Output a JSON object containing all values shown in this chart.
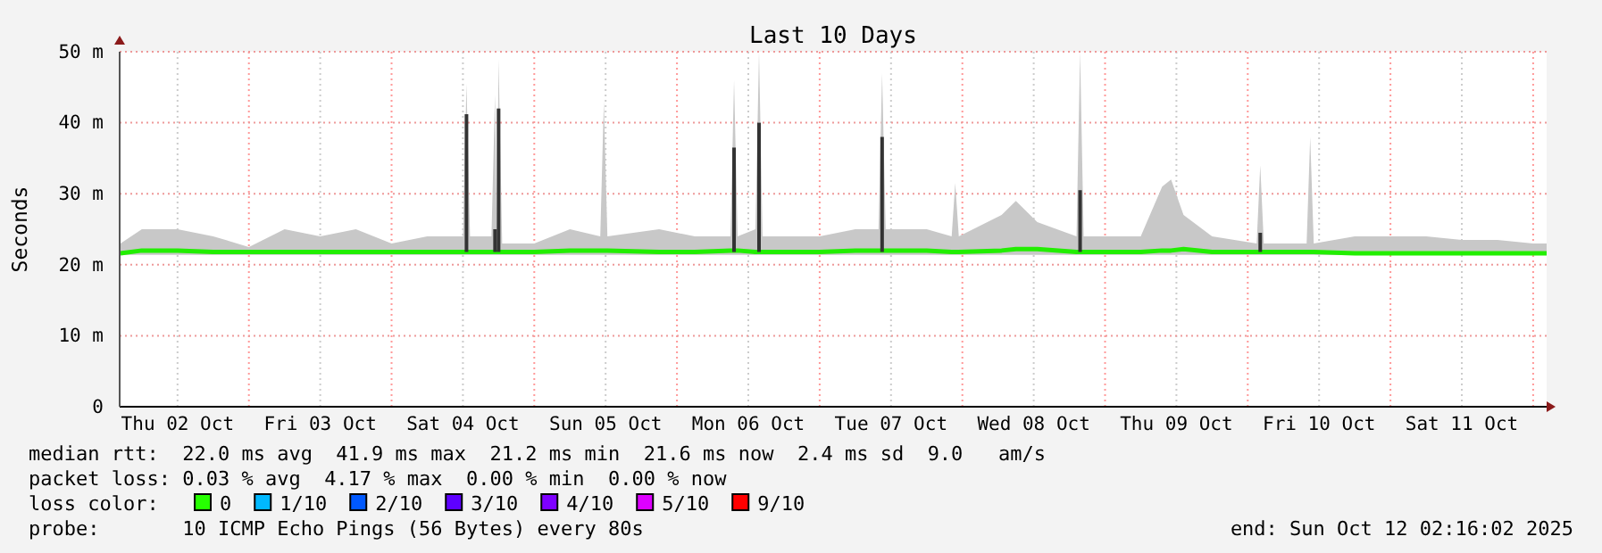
{
  "chart_data": {
    "type": "line",
    "title": "Last 10 Days",
    "ylabel": "Seconds",
    "xlim": [
      "2025-10-02T02:16",
      "2025-10-12T02:16"
    ],
    "xticks": [
      {
        "value": "2025-10-02T12:00",
        "label": "Thu 02 Oct"
      },
      {
        "value": "2025-10-03T00:00",
        "label": null
      },
      {
        "value": "2025-10-03T12:00",
        "label": "Fri 03 Oct"
      },
      {
        "value": "2025-10-04T00:00",
        "label": null
      },
      {
        "value": "2025-10-04T12:00",
        "label": "Sat 04 Oct"
      },
      {
        "value": "2025-10-05T00:00",
        "label": null
      },
      {
        "value": "2025-10-05T12:00",
        "label": "Sun 05 Oct"
      },
      {
        "value": "2025-10-06T00:00",
        "label": null
      },
      {
        "value": "2025-10-06T12:00",
        "label": "Mon 06 Oct"
      },
      {
        "value": "2025-10-07T00:00",
        "label": null
      },
      {
        "value": "2025-10-07T12:00",
        "label": "Tue 07 Oct"
      },
      {
        "value": "2025-10-08T00:00",
        "label": null
      },
      {
        "value": "2025-10-08T12:00",
        "label": "Wed 08 Oct"
      },
      {
        "value": "2025-10-09T00:00",
        "label": null
      },
      {
        "value": "2025-10-09T12:00",
        "label": "Thu 09 Oct"
      },
      {
        "value": "2025-10-10T00:00",
        "label": null
      },
      {
        "value": "2025-10-10T12:00",
        "label": "Fri 10 Oct"
      },
      {
        "value": "2025-10-11T00:00",
        "label": null
      },
      {
        "value": "2025-10-11T12:00",
        "label": "Sat 11 Oct"
      },
      {
        "value": "2025-10-12T00:00",
        "label": null
      }
    ],
    "ylim": [
      0,
      50
    ],
    "yticks": [
      0,
      {
        "value": 10,
        "label": "10 m"
      },
      {
        "value": 20,
        "label": "20 m"
      },
      {
        "value": 30,
        "label": "30 m"
      },
      {
        "value": 40,
        "label": "40 m"
      },
      {
        "value": 50,
        "label": "50 m"
      }
    ],
    "grid": true,
    "series": [
      {
        "color": "#22ee00",
        "x": [
          "2025-10-02T02:24",
          "2025-10-02T06:00",
          "2025-10-02T12:00",
          "2025-10-02T18:00",
          "2025-10-03T00:00",
          "2025-10-03T06:00",
          "2025-10-03T12:00",
          "2025-10-03T18:00",
          "2025-10-04T00:00",
          "2025-10-04T06:00",
          "2025-10-04T12:00",
          "2025-10-04T12:36",
          "2025-10-04T13:12",
          "2025-10-04T16:48",
          "2025-10-04T17:24",
          "2025-10-04T17:42",
          "2025-10-04T18:00",
          "2025-10-04T18:36",
          "2025-10-05T00:00",
          "2025-10-05T06:00",
          "2025-10-05T11:06",
          "2025-10-05T11:42",
          "2025-10-05T12:18",
          "2025-10-05T21:00",
          "2025-10-06T03:00",
          "2025-10-06T09:00",
          "2025-10-06T09:36",
          "2025-10-06T10:12",
          "2025-10-06T13:12",
          "2025-10-06T13:48",
          "2025-10-06T14:24",
          "2025-10-07T00:00",
          "2025-10-07T06:00",
          "2025-10-07T09:54",
          "2025-10-07T10:30",
          "2025-10-07T11:06",
          "2025-10-07T18:00",
          "2025-10-07T22:12",
          "2025-10-07T22:48",
          "2025-10-07T23:24",
          "2025-10-08T06:36",
          "2025-10-08T09:00",
          "2025-10-08T12:36",
          "2025-10-08T19:12",
          "2025-10-08T19:48",
          "2025-10-08T20:24",
          "2025-10-09T06:00",
          "2025-10-09T09:36",
          "2025-10-09T11:06",
          "2025-10-09T13:12",
          "2025-10-09T18:00",
          "2025-10-10T01:30",
          "2025-10-10T02:06",
          "2025-10-10T02:42",
          "2025-10-10T09:54",
          "2025-10-10T10:30",
          "2025-10-10T11:06",
          "2025-10-10T18:00",
          "2025-10-11T00:00",
          "2025-10-11T06:00",
          "2025-10-11T12:00",
          "2025-10-11T18:00",
          "2025-10-12T00:00",
          "2025-10-12T02:16"
        ],
        "values": [
          21.6,
          22,
          22,
          21.8,
          21.8,
          21.8,
          21.8,
          21.8,
          21.8,
          21.8,
          21.8,
          21.8,
          21.8,
          21.8,
          21.8,
          21.8,
          21.8,
          21.8,
          21.8,
          22,
          22,
          22,
          22,
          21.8,
          21.8,
          22,
          22,
          22,
          21.8,
          21.8,
          21.8,
          21.8,
          22,
          22,
          22,
          22,
          22,
          21.8,
          21.8,
          21.8,
          22,
          22.2,
          22.2,
          21.8,
          21.8,
          21.8,
          21.8,
          22,
          22,
          22.2,
          21.8,
          21.8,
          21.8,
          21.8,
          21.8,
          21.8,
          21.8,
          21.6,
          21.6,
          21.6,
          21.6,
          21.6,
          21.6,
          21.6
        ],
        "lower": [
          21.4,
          21.4,
          21.4,
          21.4,
          21.4,
          21.4,
          21.4,
          21.4,
          21.4,
          21.4,
          21.4,
          21.4,
          21.4,
          21.4,
          21.4,
          21.4,
          21.4,
          21.4,
          21.4,
          21.4,
          21.4,
          21.4,
          21.4,
          21.4,
          21.4,
          21.4,
          21.4,
          21.4,
          21.4,
          21.4,
          21.4,
          21.4,
          21.4,
          21.4,
          21.4,
          21.4,
          21.4,
          21.4,
          21.4,
          21.4,
          21.4,
          21.4,
          21.4,
          21.4,
          21.4,
          21.4,
          21.4,
          21.4,
          21.4,
          21.4,
          21.4,
          21.4,
          21.4,
          21.4,
          21.4,
          21.4,
          21.4,
          21.4,
          21.4,
          21.4,
          21.4,
          21.4,
          21.4,
          21.4
        ],
        "upper": [
          23,
          25,
          25,
          24,
          22.5,
          25,
          24,
          25,
          23,
          24,
          24,
          45.5,
          24,
          24,
          44,
          24,
          49,
          23,
          23,
          25,
          24,
          43,
          24,
          25,
          24,
          24,
          46,
          24,
          25,
          50,
          24,
          24,
          25,
          25,
          47,
          25,
          25,
          24,
          31.5,
          24,
          27,
          29,
          26,
          24,
          50,
          24,
          24,
          31,
          32,
          27,
          24,
          23,
          34,
          23,
          23,
          38,
          23,
          24,
          24,
          24,
          23.5,
          23.5,
          23,
          23
        ]
      },
      {
        "type": "bar",
        "color": "#333333",
        "x": [
          "2025-10-04T12:36",
          "2025-10-04T17:24",
          "2025-10-04T18:00",
          "2025-10-06T09:36",
          "2025-10-06T13:48",
          "2025-10-07T10:30",
          "2025-10-08T19:48",
          "2025-10-10T02:06"
        ],
        "base": [
          21.8,
          21.8,
          21.8,
          21.8,
          21.8,
          21.8,
          21.8,
          21.8
        ],
        "values": [
          19.4,
          3.2,
          20.2,
          14.7,
          18.2,
          16.2,
          8.7,
          2.7
        ]
      }
    ],
    "annotations": [
      "median rtt:  22.0 ms avg  41.9 ms max  21.2 ms min  21.6 ms now  2.4 ms sd  9.0   am/s",
      "packet loss: 0.03 % avg  4.17 % max  0.00 % min  0.00 % now",
      "loss color:",
      "0",
      "1/10",
      "2/10",
      "3/10",
      "4/10",
      "5/10",
      "9/10",
      "probe:       10 ICMP Echo Pings (56 Bytes) every 80s",
      "end: Sun Oct 12 02:16:02 2025"
    ]
  }
}
